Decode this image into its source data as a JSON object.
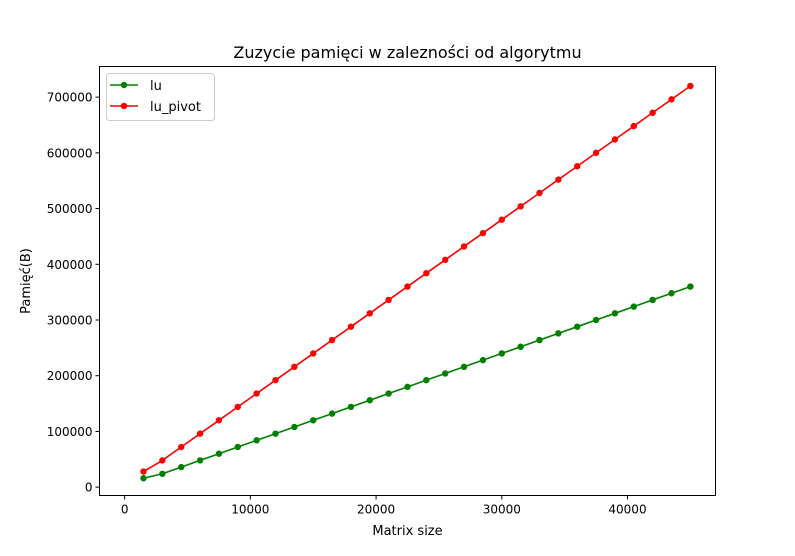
{
  "chart_data": {
    "type": "line",
    "title": "Zuzycie pamięci w zalezności od algorytmu",
    "xlabel": "Matrix size",
    "ylabel": "Pamięć(B)",
    "xlim": [
      -2000,
      47000
    ],
    "ylim": [
      -15000,
      755000
    ],
    "xticks": [
      0,
      10000,
      20000,
      30000,
      40000
    ],
    "yticks": [
      0,
      100000,
      200000,
      300000,
      400000,
      500000,
      600000,
      700000
    ],
    "grid": false,
    "legend_position": "top-left",
    "x": [
      1500,
      3000,
      4500,
      6000,
      7500,
      9000,
      10500,
      12000,
      13500,
      15000,
      16500,
      18000,
      19500,
      21000,
      22500,
      24000,
      25500,
      27000,
      28500,
      30000,
      31500,
      33000,
      34500,
      36000,
      37500,
      39000,
      40500,
      42000,
      43500,
      45000
    ],
    "series": [
      {
        "name": "lu",
        "color": "#008000",
        "values": [
          16000,
          24000,
          36000,
          48000,
          60000,
          72000,
          84000,
          96000,
          108000,
          120000,
          132000,
          144000,
          156000,
          168000,
          180000,
          192000,
          204000,
          216000,
          228000,
          240000,
          252000,
          264000,
          276000,
          288000,
          300000,
          312000,
          324000,
          336000,
          348000,
          360000
        ]
      },
      {
        "name": "lu_pivot",
        "color": "#ff0000",
        "values": [
          28000,
          48000,
          72000,
          96000,
          120000,
          144000,
          168000,
          192000,
          216000,
          240000,
          264000,
          288000,
          312000,
          336000,
          360000,
          384000,
          408000,
          432000,
          456000,
          480000,
          504000,
          528000,
          552000,
          576000,
          600000,
          624000,
          648000,
          672000,
          696000,
          720000
        ]
      }
    ]
  }
}
